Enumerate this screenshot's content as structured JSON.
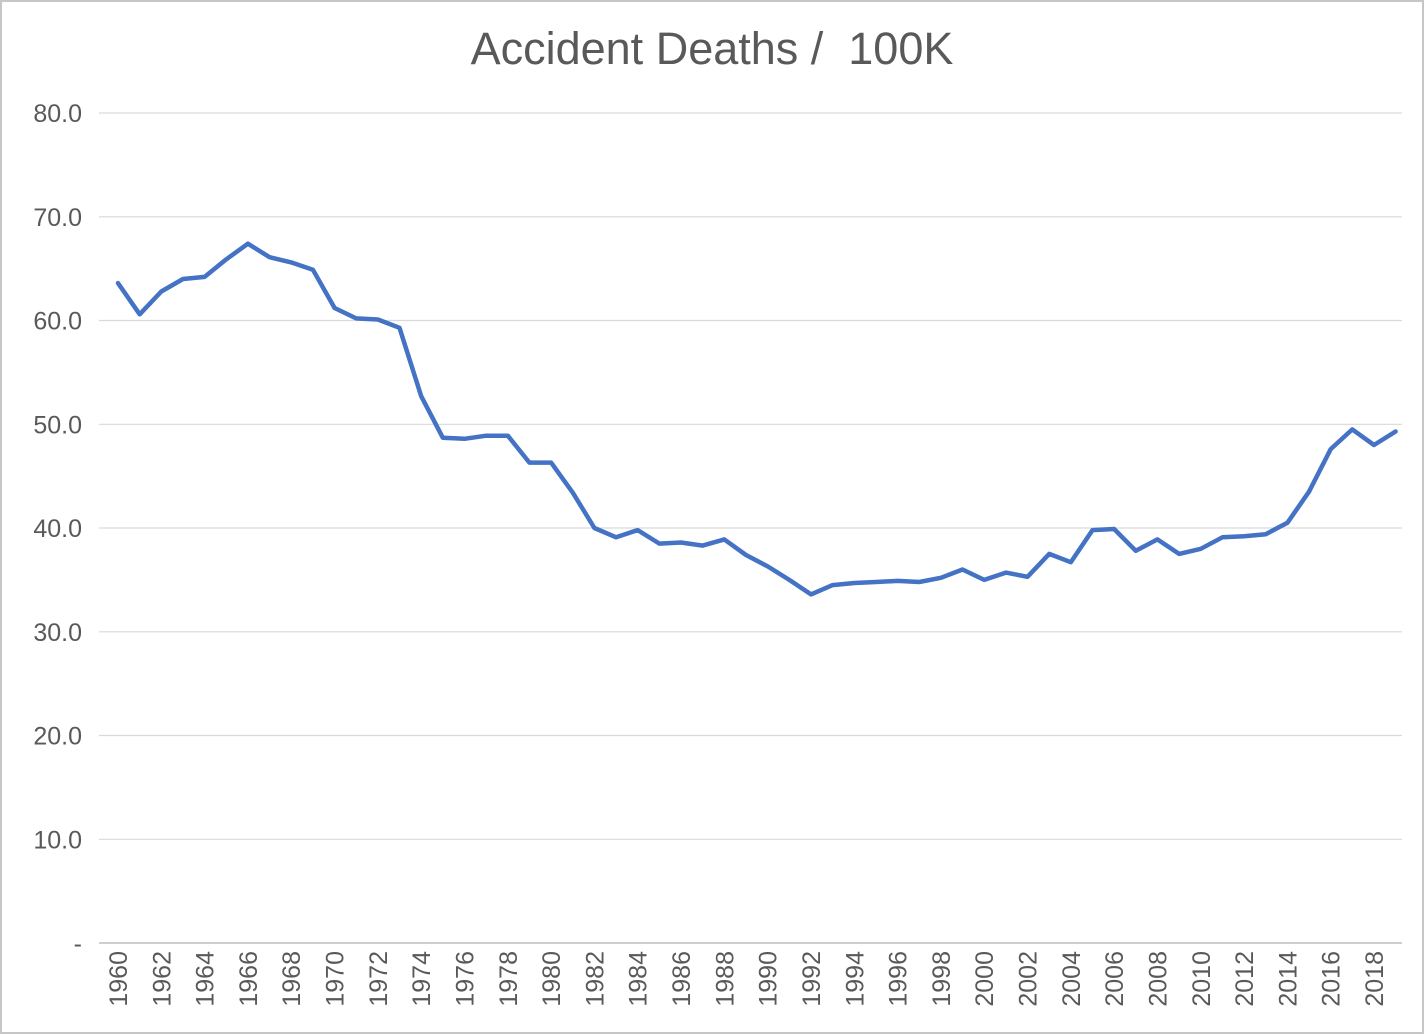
{
  "title": "Accident Deaths /  100K",
  "chart_data": {
    "type": "line",
    "title": "Accident Deaths /  100K",
    "xlabel": "",
    "ylabel": "",
    "x": [
      1960,
      1961,
      1962,
      1963,
      1964,
      1965,
      1966,
      1967,
      1968,
      1969,
      1970,
      1971,
      1972,
      1973,
      1974,
      1975,
      1976,
      1977,
      1978,
      1979,
      1980,
      1981,
      1982,
      1983,
      1984,
      1985,
      1986,
      1987,
      1988,
      1989,
      1990,
      1991,
      1992,
      1993,
      1994,
      1995,
      1996,
      1997,
      1998,
      1999,
      2000,
      2001,
      2002,
      2003,
      2004,
      2005,
      2006,
      2007,
      2008,
      2009,
      2010,
      2011,
      2012,
      2013,
      2014,
      2015,
      2016,
      2017,
      2018,
      2019
    ],
    "values": [
      63.6,
      60.6,
      62.8,
      64.0,
      64.2,
      65.9,
      67.4,
      66.1,
      65.6,
      64.9,
      61.2,
      60.2,
      60.1,
      59.3,
      52.7,
      48.7,
      48.6,
      48.9,
      48.9,
      46.3,
      46.3,
      43.4,
      40.0,
      39.1,
      39.8,
      38.5,
      38.6,
      38.3,
      38.9,
      37.4,
      36.3,
      35.0,
      33.6,
      34.5,
      34.7,
      34.8,
      34.9,
      34.8,
      35.2,
      36.0,
      35.0,
      35.7,
      35.3,
      37.5,
      36.7,
      39.8,
      39.9,
      37.8,
      38.9,
      37.5,
      38.0,
      39.1,
      39.2,
      39.4,
      40.5,
      43.5,
      47.6,
      49.5,
      48.0,
      49.3
    ],
    "ylim": [
      0,
      80
    ],
    "ytick_step": 10,
    "ytick_labels": [
      "-",
      "10.0",
      "20.0",
      "30.0",
      "40.0",
      "50.0",
      "60.0",
      "70.0",
      "80.0"
    ],
    "xtick_labels": [
      "1960",
      "1962",
      "1964",
      "1966",
      "1968",
      "1970",
      "1972",
      "1974",
      "1976",
      "1978",
      "1980",
      "1982",
      "1984",
      "1986",
      "1988",
      "1990",
      "1992",
      "1994",
      "1996",
      "1998",
      "2000",
      "2002",
      "2004",
      "2006",
      "2008",
      "2010",
      "2012",
      "2014",
      "2016",
      "2018"
    ],
    "grid": true,
    "legend": "none",
    "series_color": "#4472C4",
    "grid_color": "#D9D9D9",
    "axis_color": "#BFBFBF",
    "text_color": "#595959"
  }
}
